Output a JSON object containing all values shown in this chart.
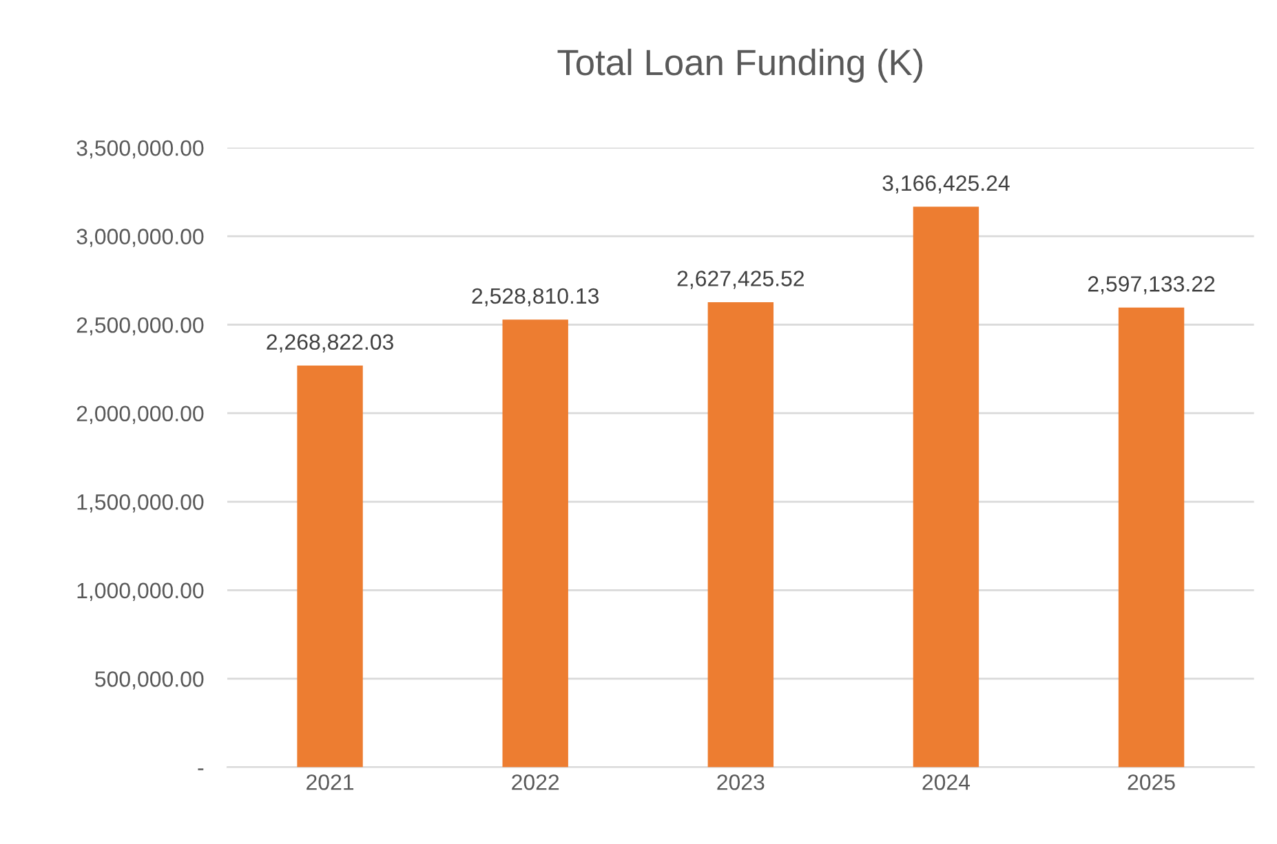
{
  "chart_data": {
    "type": "bar",
    "title": "Total Loan Funding (K)",
    "categories": [
      "2021",
      "2022",
      "2023",
      "2024",
      "2025"
    ],
    "values": [
      2268822.03,
      2528810.13,
      2627425.52,
      3166425.24,
      2597133.22
    ],
    "value_labels": [
      "2,268,822.03",
      "2,528,810.13",
      "2,627,425.52",
      "3,166,425.24",
      "2,597,133.22"
    ],
    "color": "#ed7d31",
    "ylim": [
      0,
      3500000
    ],
    "yticks": [
      {
        "value": 0,
        "label": "-"
      },
      {
        "value": 500000,
        "label": "500,000.00"
      },
      {
        "value": 1000000,
        "label": "1,000,000.00"
      },
      {
        "value": 1500000,
        "label": "1,500,000.00"
      },
      {
        "value": 2000000,
        "label": "2,000,000.00"
      },
      {
        "value": 2500000,
        "label": "2,500,000.00"
      },
      {
        "value": 3000000,
        "label": "3,000,000.00"
      },
      {
        "value": 3500000,
        "label": "3,500,000.00"
      }
    ],
    "grid": "y",
    "legend": false
  }
}
